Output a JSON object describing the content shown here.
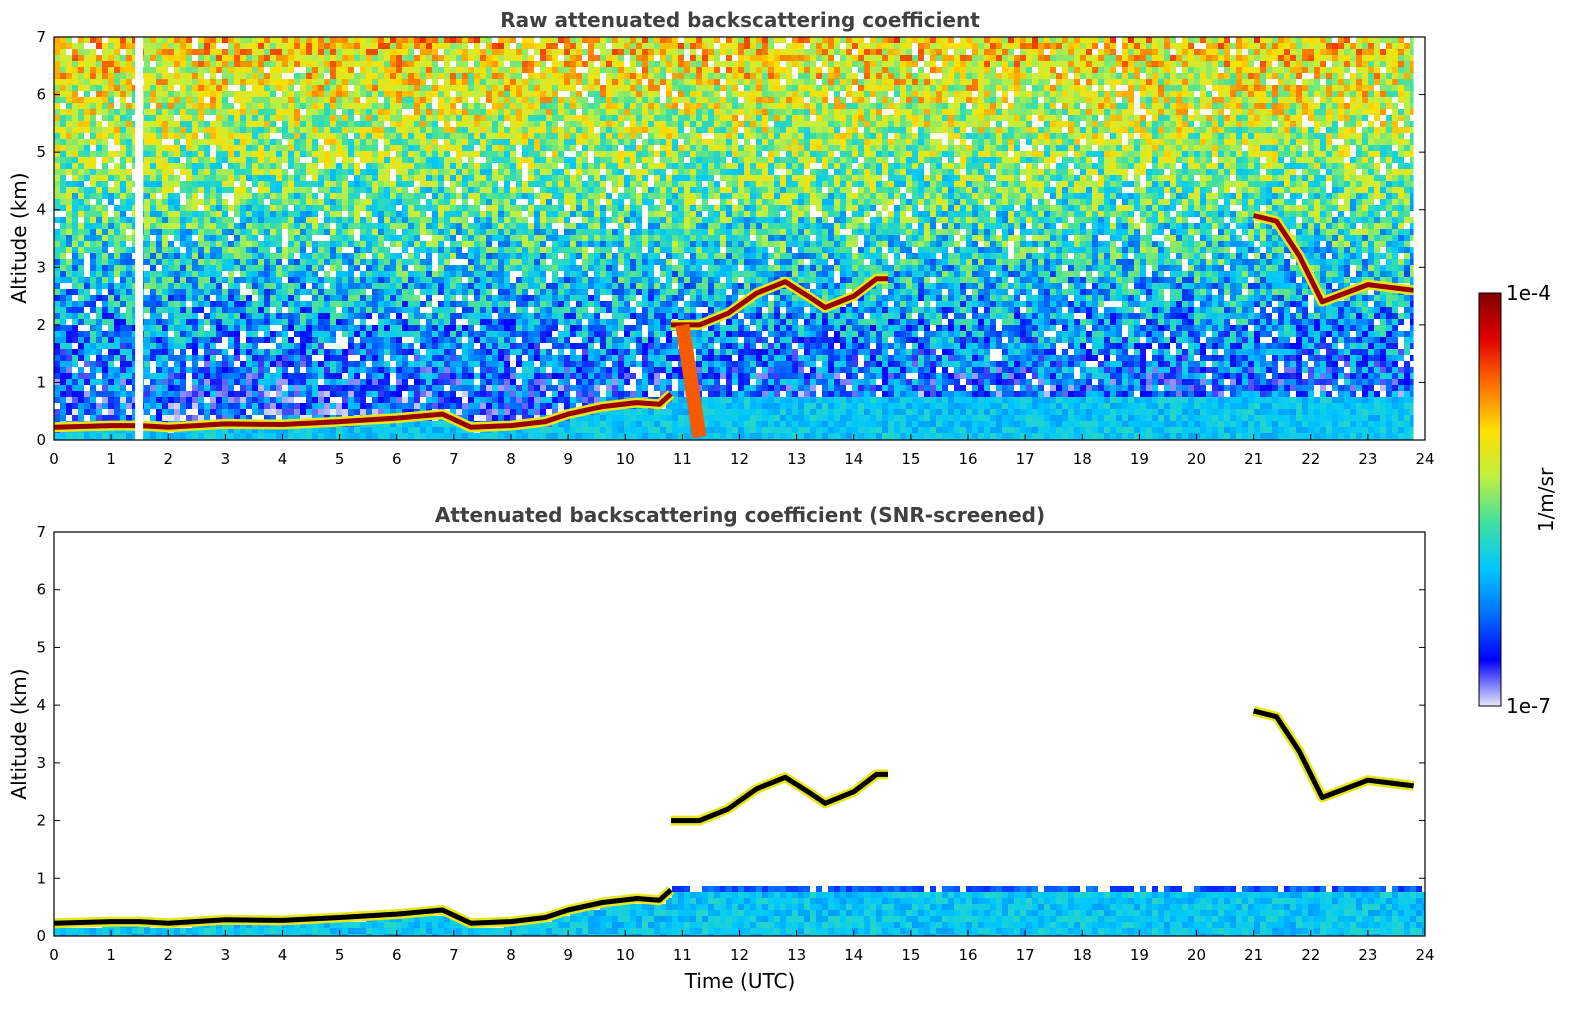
{
  "chart_data": [
    {
      "type": "heatmap",
      "title": "Raw attenuated backscattering coefficient",
      "xlabel": "",
      "ylabel": "Altitude (km)",
      "xlim": [
        0,
        24
      ],
      "ylim": [
        0,
        7
      ],
      "xticks": [
        "0",
        "1",
        "2",
        "3",
        "4",
        "5",
        "6",
        "7",
        "8",
        "9",
        "10",
        "11",
        "12",
        "13",
        "14",
        "15",
        "16",
        "17",
        "18",
        "19",
        "20",
        "21",
        "22",
        "23",
        "24"
      ],
      "yticks": [
        "0",
        "1",
        "2",
        "3",
        "4",
        "5",
        "6",
        "7"
      ],
      "screened": false,
      "gaps_utc": [
        [
          1.42,
          1.56
        ],
        [
          23.8,
          24
        ]
      ],
      "features": [
        {
          "name": "boundary layer top",
          "points": [
            [
              0,
              0.22
            ],
            [
              1,
              0.25
            ],
            [
              1.5,
              0.25
            ],
            [
              2,
              0.22
            ],
            [
              3,
              0.28
            ],
            [
              4,
              0.27
            ],
            [
              5,
              0.32
            ],
            [
              6,
              0.38
            ],
            [
              6.8,
              0.45
            ],
            [
              7.3,
              0.22
            ],
            [
              8,
              0.25
            ],
            [
              8.6,
              0.32
            ],
            [
              9,
              0.45
            ],
            [
              9.6,
              0.58
            ],
            [
              10.2,
              0.65
            ],
            [
              10.6,
              0.62
            ],
            [
              10.8,
              0.8
            ]
          ]
        },
        {
          "name": "cloud layer",
          "points": [
            [
              10.8,
              2.0
            ],
            [
              11.3,
              2.0
            ],
            [
              11.8,
              2.2
            ],
            [
              12.3,
              2.55
            ],
            [
              12.8,
              2.75
            ],
            [
              13.2,
              2.5
            ],
            [
              13.5,
              2.3
            ],
            [
              14.0,
              2.5
            ],
            [
              14.4,
              2.8
            ],
            [
              14.6,
              2.8
            ]
          ]
        },
        {
          "name": "elevated layer",
          "points": [
            [
              21.0,
              3.9
            ],
            [
              21.4,
              3.8
            ],
            [
              21.8,
              3.2
            ],
            [
              22.2,
              2.4
            ],
            [
              23.0,
              2.7
            ],
            [
              23.8,
              2.6
            ]
          ]
        },
        {
          "name": "precipitation streak",
          "points": [
            [
              11.0,
              2.0
            ],
            [
              11.3,
              0.05
            ]
          ]
        }
      ]
    },
    {
      "type": "heatmap",
      "title": "Attenuated backscattering coefficient (SNR-screened)",
      "xlabel": "Time (UTC)",
      "ylabel": "Altitude (km)",
      "xlim": [
        0,
        24
      ],
      "ylim": [
        0,
        7
      ],
      "xticks": [
        "0",
        "1",
        "2",
        "3",
        "4",
        "5",
        "6",
        "7",
        "8",
        "9",
        "10",
        "11",
        "12",
        "13",
        "14",
        "15",
        "16",
        "17",
        "18",
        "19",
        "20",
        "21",
        "22",
        "23",
        "24"
      ],
      "yticks": [
        "0",
        "1",
        "2",
        "3",
        "4",
        "5",
        "6",
        "7"
      ],
      "screened": true,
      "features": [
        {
          "name": "boundary layer top",
          "points": [
            [
              0,
              0.22
            ],
            [
              1,
              0.25
            ],
            [
              1.5,
              0.25
            ],
            [
              2,
              0.22
            ],
            [
              3,
              0.28
            ],
            [
              4,
              0.27
            ],
            [
              5,
              0.32
            ],
            [
              6,
              0.38
            ],
            [
              6.8,
              0.45
            ],
            [
              7.3,
              0.22
            ],
            [
              8,
              0.25
            ],
            [
              8.6,
              0.32
            ],
            [
              9,
              0.45
            ],
            [
              9.6,
              0.58
            ],
            [
              10.2,
              0.65
            ],
            [
              10.6,
              0.62
            ],
            [
              10.8,
              0.8
            ]
          ]
        },
        {
          "name": "cloud layer",
          "points": [
            [
              10.8,
              2.0
            ],
            [
              11.3,
              2.0
            ],
            [
              11.8,
              2.2
            ],
            [
              12.3,
              2.55
            ],
            [
              12.8,
              2.75
            ],
            [
              13.2,
              2.5
            ],
            [
              13.5,
              2.3
            ],
            [
              14.0,
              2.5
            ],
            [
              14.4,
              2.8
            ],
            [
              14.6,
              2.8
            ]
          ]
        },
        {
          "name": "elevated layer",
          "points": [
            [
              21.0,
              3.9
            ],
            [
              21.4,
              3.8
            ],
            [
              21.8,
              3.2
            ],
            [
              22.2,
              2.4
            ],
            [
              23.0,
              2.7
            ],
            [
              23.8,
              2.6
            ]
          ]
        }
      ]
    }
  ],
  "colorbar": {
    "label": "1/m/sr",
    "max_label": "1e-4",
    "min_label": "1e-7",
    "scale": "log",
    "colormap": [
      "#e8e8f8",
      "#0000ff",
      "#0070ff",
      "#00c8ff",
      "#40e0a0",
      "#c0f040",
      "#ffe000",
      "#ff7000",
      "#e00000",
      "#800000"
    ]
  }
}
